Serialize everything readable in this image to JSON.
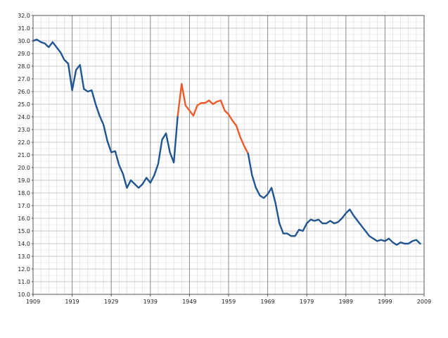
{
  "chart_data": {
    "type": "line",
    "title": "",
    "xlabel": "",
    "ylabel": "",
    "xlim": [
      1909,
      2009
    ],
    "ylim": [
      10,
      32
    ],
    "x_ticks": [
      "1909",
      "1919",
      "1929",
      "1939",
      "1949",
      "1959",
      "1969",
      "1979",
      "1989",
      "1999",
      "2009"
    ],
    "y_ticks": [
      "10.0",
      "11.0",
      "12.0",
      "13.0",
      "14.0",
      "15.0",
      "16.0",
      "17.0",
      "18.0",
      "19.0",
      "20.0",
      "21.0",
      "22.0",
      "23.0",
      "24.0",
      "25.0",
      "26.0",
      "27.0",
      "28.0",
      "29.0",
      "30.0",
      "31.0",
      "32.0"
    ],
    "grid": true,
    "legend": "none",
    "series": [
      {
        "color": "#1f5591",
        "points": [
          [
            1909,
            30.0
          ],
          [
            1910,
            30.1
          ],
          [
            1911,
            29.9
          ],
          [
            1912,
            29.8
          ],
          [
            1913,
            29.5
          ],
          [
            1914,
            29.9
          ],
          [
            1915,
            29.5
          ],
          [
            1916,
            29.1
          ],
          [
            1917,
            28.5
          ],
          [
            1918,
            28.2
          ],
          [
            1919,
            26.1
          ],
          [
            1920,
            27.7
          ],
          [
            1921,
            28.1
          ],
          [
            1922,
            26.2
          ],
          [
            1923,
            26.0
          ],
          [
            1924,
            26.1
          ],
          [
            1925,
            25.0
          ],
          [
            1926,
            24.1
          ],
          [
            1927,
            23.4
          ],
          [
            1928,
            22.1
          ],
          [
            1929,
            21.2
          ],
          [
            1930,
            21.3
          ],
          [
            1931,
            20.2
          ],
          [
            1932,
            19.5
          ],
          [
            1933,
            18.4
          ],
          [
            1934,
            19.0
          ],
          [
            1935,
            18.7
          ],
          [
            1936,
            18.4
          ],
          [
            1937,
            18.7
          ],
          [
            1938,
            19.2
          ],
          [
            1939,
            18.8
          ],
          [
            1940,
            19.4
          ],
          [
            1941,
            20.3
          ],
          [
            1942,
            22.2
          ],
          [
            1943,
            22.7
          ],
          [
            1944,
            21.2
          ],
          [
            1945,
            20.4
          ],
          [
            1946,
            24.1
          ]
        ]
      },
      {
        "color": "#f05a28",
        "points": [
          [
            1946,
            24.1
          ],
          [
            1947,
            26.6
          ],
          [
            1948,
            24.9
          ],
          [
            1949,
            24.5
          ],
          [
            1950,
            24.1
          ],
          [
            1951,
            24.9
          ],
          [
            1952,
            25.1
          ],
          [
            1953,
            25.1
          ],
          [
            1954,
            25.3
          ],
          [
            1955,
            25.0
          ],
          [
            1956,
            25.2
          ],
          [
            1957,
            25.3
          ],
          [
            1958,
            24.5
          ],
          [
            1959,
            24.2
          ],
          [
            1960,
            23.7
          ],
          [
            1961,
            23.3
          ],
          [
            1962,
            22.4
          ],
          [
            1963,
            21.7
          ],
          [
            1964,
            21.1
          ]
        ]
      },
      {
        "color": "#1f5591",
        "points": [
          [
            1964,
            21.1
          ],
          [
            1965,
            19.4
          ],
          [
            1966,
            18.4
          ],
          [
            1967,
            17.8
          ],
          [
            1968,
            17.6
          ],
          [
            1969,
            17.9
          ],
          [
            1970,
            18.4
          ],
          [
            1971,
            17.2
          ],
          [
            1972,
            15.6
          ],
          [
            1973,
            14.8
          ],
          [
            1974,
            14.8
          ],
          [
            1975,
            14.6
          ],
          [
            1976,
            14.6
          ],
          [
            1977,
            15.1
          ],
          [
            1978,
            15.0
          ],
          [
            1979,
            15.6
          ],
          [
            1980,
            15.9
          ],
          [
            1981,
            15.8
          ],
          [
            1982,
            15.9
          ],
          [
            1983,
            15.6
          ],
          [
            1984,
            15.6
          ],
          [
            1985,
            15.8
          ],
          [
            1986,
            15.6
          ],
          [
            1987,
            15.7
          ],
          [
            1988,
            16.0
          ],
          [
            1989,
            16.4
          ],
          [
            1990,
            16.7
          ],
          [
            1991,
            16.2
          ],
          [
            1992,
            15.8
          ],
          [
            1993,
            15.4
          ],
          [
            1994,
            15.0
          ],
          [
            1995,
            14.6
          ],
          [
            1996,
            14.4
          ],
          [
            1997,
            14.2
          ],
          [
            1998,
            14.3
          ],
          [
            1999,
            14.2
          ],
          [
            2000,
            14.4
          ],
          [
            2001,
            14.1
          ],
          [
            2002,
            13.9
          ],
          [
            2003,
            14.1
          ],
          [
            2004,
            14.0
          ],
          [
            2005,
            14.0
          ],
          [
            2006,
            14.2
          ],
          [
            2007,
            14.3
          ],
          [
            2008,
            14.0
          ]
        ]
      }
    ]
  }
}
